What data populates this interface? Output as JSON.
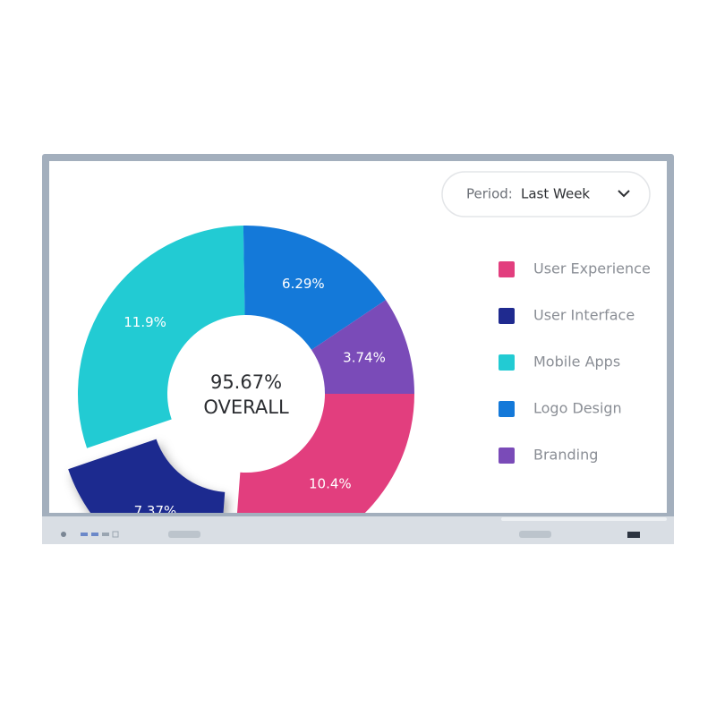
{
  "chart_data": {
    "type": "donut",
    "period_label": "Period:",
    "period_value": "Last Week",
    "center_value_label": "95.67%",
    "center_caption": "OVERALL",
    "categories": [
      "User Experience",
      "User Interface",
      "Mobile Apps",
      "Logo Design",
      "Branding"
    ],
    "values": [
      10.4,
      7.37,
      11.9,
      6.29,
      3.74
    ],
    "value_labels": [
      "10.4%",
      "7.37%",
      "11.9%",
      "6.29%",
      "3.74%"
    ],
    "colors": [
      "#e23e7e",
      "#1f2a8f",
      "#22cbd3",
      "#1479d9",
      "#7a4bb8"
    ],
    "exploded": "User Interface",
    "legend": "right"
  }
}
